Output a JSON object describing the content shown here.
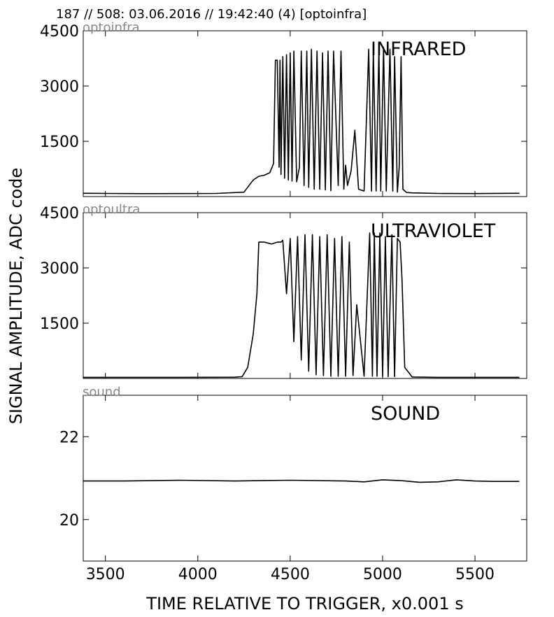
{
  "header": {
    "text": "187 // 508:   03.06.2016 // 19:42:40 (4)  [optoinfra]"
  },
  "figure": {
    "ylabel": "SIGNAL AMPLITUDE,  ADC code",
    "xlabel": "TIME RELATIVE TO TRIGGER,   x0.001 s",
    "x_ticks": [
      "3500",
      "4000",
      "4500",
      "5000",
      "5500"
    ]
  },
  "chart_data": [
    {
      "type": "line",
      "source_label": "optoinfra",
      "title": "INFRARED",
      "xlim": [
        3380,
        5780
      ],
      "ylim": [
        0,
        4500
      ],
      "y_ticks": [
        1500,
        3000,
        4500
      ],
      "y_tick_labels": [
        "1500",
        "3000",
        "4500"
      ],
      "grid": false,
      "x": [
        3380,
        3500,
        3700,
        3900,
        4100,
        4250,
        4300,
        4330,
        4360,
        4390,
        4410,
        4420,
        4430,
        4440,
        4445,
        4450,
        4460,
        4470,
        4480,
        4490,
        4500,
        4510,
        4520,
        4535,
        4550,
        4560,
        4575,
        4590,
        4600,
        4615,
        4630,
        4645,
        4660,
        4675,
        4690,
        4705,
        4720,
        4735,
        4760,
        4775,
        4790,
        4800,
        4810,
        4830,
        4850,
        4870,
        4900,
        4925,
        4940,
        4950,
        4965,
        4980,
        4990,
        5005,
        5020,
        5040,
        5055,
        5065,
        5080,
        5090,
        5100,
        5110,
        5130,
        5160,
        5300,
        5500,
        5700,
        5740
      ],
      "values": [
        90,
        85,
        80,
        82,
        85,
        120,
        450,
        550,
        580,
        650,
        900,
        3700,
        3700,
        800,
        3700,
        600,
        3800,
        500,
        3850,
        450,
        3900,
        420,
        3950,
        400,
        800,
        3950,
        300,
        3950,
        250,
        4000,
        200,
        3950,
        200,
        3900,
        180,
        3950,
        160,
        3950,
        300,
        3950,
        200,
        850,
        300,
        700,
        1800,
        200,
        150,
        4000,
        150,
        4000,
        150,
        4050,
        150,
        4050,
        150,
        4000,
        150,
        3800,
        120,
        800,
        3800,
        200,
        110,
        100,
        85,
        82,
        90,
        90
      ]
    },
    {
      "type": "line",
      "source_label": "optoultra",
      "title": "ULTRAVIOLET",
      "xlim": [
        3380,
        5780
      ],
      "ylim": [
        0,
        4500
      ],
      "y_ticks": [
        1500,
        3000,
        4500
      ],
      "y_tick_labels": [
        "1500",
        "3000",
        "4500"
      ],
      "grid": false,
      "x": [
        3380,
        3600,
        3900,
        4200,
        4240,
        4270,
        4300,
        4320,
        4330,
        4360,
        4400,
        4430,
        4450,
        4460,
        4480,
        4500,
        4520,
        4540,
        4560,
        4580,
        4600,
        4620,
        4640,
        4660,
        4680,
        4700,
        4720,
        4740,
        4760,
        4780,
        4800,
        4820,
        4840,
        4860,
        4900,
        4930,
        4945,
        4955,
        4970,
        4985,
        5000,
        5015,
        5030,
        5050,
        5065,
        5080,
        5095,
        5105,
        5120,
        5160,
        5300,
        5500,
        5740
      ],
      "values": [
        30,
        30,
        30,
        35,
        50,
        300,
        1200,
        2300,
        3700,
        3700,
        3650,
        3700,
        3700,
        3750,
        2300,
        3800,
        1000,
        3850,
        500,
        3900,
        200,
        3900,
        100,
        3850,
        80,
        3900,
        60,
        3800,
        60,
        3850,
        60,
        3700,
        80,
        2000,
        60,
        3950,
        60,
        3950,
        60,
        3950,
        50,
        3850,
        50,
        3900,
        50,
        3800,
        3700,
        2700,
        300,
        40,
        30,
        30,
        30
      ]
    },
    {
      "type": "line",
      "source_label": "sound",
      "title": "SOUND",
      "xlim": [
        3380,
        5780
      ],
      "ylim": [
        19,
        23
      ],
      "y_ticks": [
        20,
        22
      ],
      "y_tick_labels": [
        "20",
        "22"
      ],
      "grid": false,
      "x": [
        3380,
        3600,
        3900,
        4200,
        4500,
        4800,
        4900,
        5000,
        5100,
        5200,
        5300,
        5400,
        5500,
        5600,
        5740
      ],
      "values": [
        20.93,
        20.93,
        20.95,
        20.93,
        20.95,
        20.93,
        20.91,
        20.96,
        20.94,
        20.9,
        20.91,
        20.96,
        20.93,
        20.92,
        20.92
      ]
    }
  ]
}
